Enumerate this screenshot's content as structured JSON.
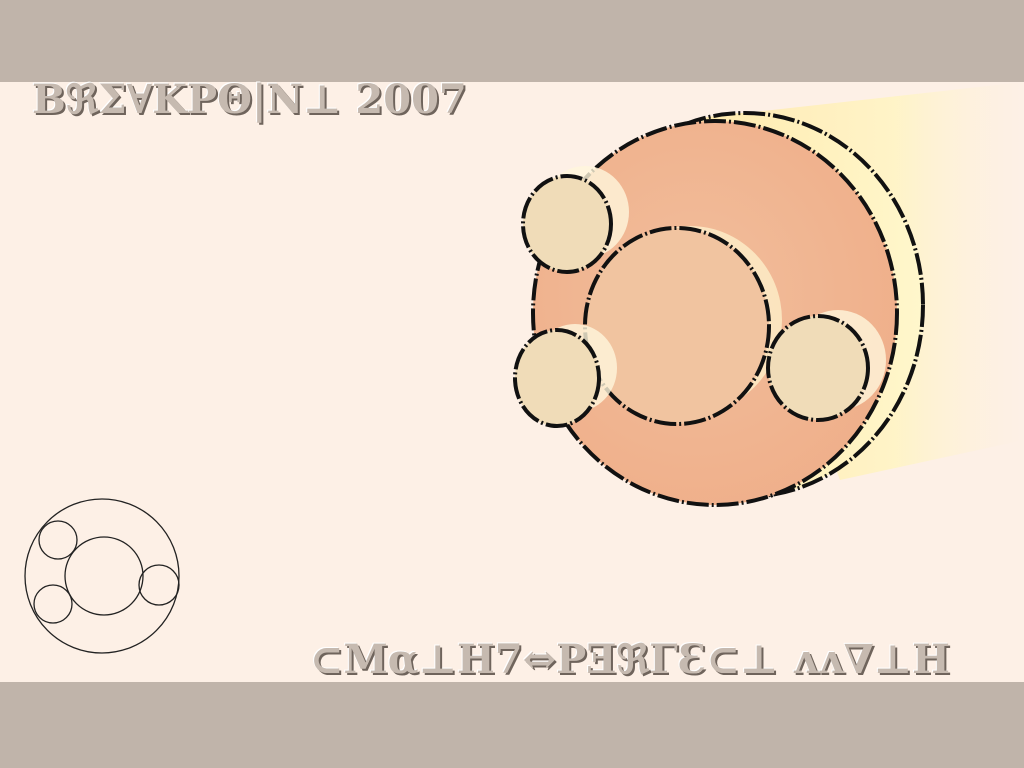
{
  "title": "BℜΣ∀KΡΘ|N⊥ 2007",
  "subtitle": "⊂Mα⊥H7⇔PƎℜΓƐ⊂⊥ ʌʌ∇⊥H",
  "colors": {
    "background": "#fdf0e6",
    "bars": "#c0b4aa",
    "disc": "#f1b894",
    "inner_circle": "#f1c4a0",
    "small_circles": "#f0dcb8",
    "beam": "#fff5c0"
  },
  "icons": [
    "breakpoint-logo-large",
    "breakpoint-logo-outline-icon"
  ]
}
